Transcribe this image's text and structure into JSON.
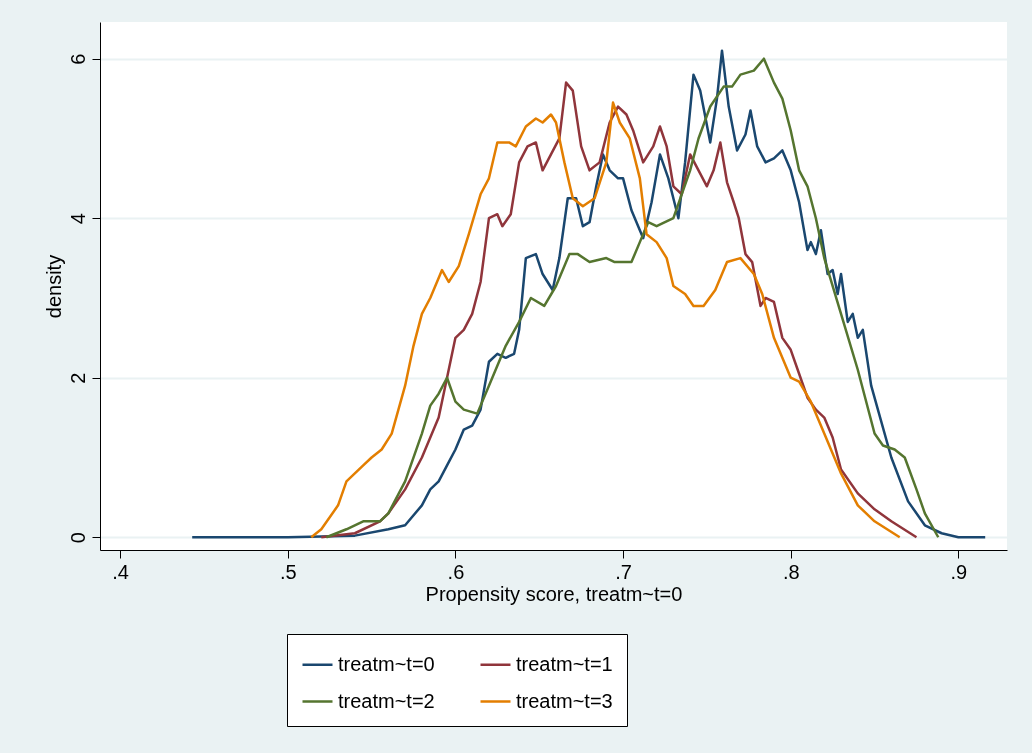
{
  "chart_data": {
    "type": "line",
    "xlabel": "Propensity score, treatm~t=0",
    "ylabel": "density",
    "xlim": [
      0.388,
      0.929
    ],
    "ylim": [
      -0.16,
      6.46
    ],
    "xticks": [
      {
        "value": 0.4,
        "label": ".4"
      },
      {
        "value": 0.5,
        "label": ".5"
      },
      {
        "value": 0.6,
        "label": ".6"
      },
      {
        "value": 0.7,
        "label": ".7"
      },
      {
        "value": 0.8,
        "label": ".8"
      },
      {
        "value": 0.9,
        "label": ".9"
      }
    ],
    "yticks": [
      0,
      2,
      4,
      6
    ],
    "grid": "y",
    "legend": "bottom",
    "line_style": "solid",
    "marker": "none",
    "series": [
      {
        "name": "treatm~t=0",
        "color": "#1a476f",
        "x": [
          0.443,
          0.5,
          0.54,
          0.56,
          0.57,
          0.58,
          0.585,
          0.59,
          0.595,
          0.6,
          0.605,
          0.61,
          0.615,
          0.62,
          0.625,
          0.63,
          0.635,
          0.638,
          0.642,
          0.648,
          0.652,
          0.658,
          0.662,
          0.667,
          0.672,
          0.676,
          0.68,
          0.684,
          0.688,
          0.692,
          0.697,
          0.7,
          0.705,
          0.712,
          0.717,
          0.722,
          0.727,
          0.733,
          0.737,
          0.742,
          0.746,
          0.752,
          0.756,
          0.759,
          0.763,
          0.768,
          0.773,
          0.776,
          0.78,
          0.785,
          0.79,
          0.795,
          0.8,
          0.805,
          0.81,
          0.812,
          0.815,
          0.818,
          0.822,
          0.825,
          0.828,
          0.83,
          0.834,
          0.837,
          0.84,
          0.843,
          0.848,
          0.852,
          0.86,
          0.87,
          0.88,
          0.89,
          0.9,
          0.916
        ],
        "values": [
          0,
          0,
          0.02,
          0.1,
          0.15,
          0.4,
          0.6,
          0.7,
          0.9,
          1.1,
          1.35,
          1.4,
          1.6,
          2.2,
          2.3,
          2.25,
          2.3,
          2.6,
          3.5,
          3.55,
          3.3,
          3.1,
          3.5,
          4.25,
          4.25,
          3.9,
          3.95,
          4.4,
          4.8,
          4.6,
          4.5,
          4.5,
          4.1,
          3.75,
          4.2,
          4.8,
          4.5,
          4.0,
          4.7,
          5.8,
          5.6,
          4.95,
          5.5,
          6.1,
          5.4,
          4.85,
          5.05,
          5.35,
          4.9,
          4.7,
          4.75,
          4.85,
          4.6,
          4.2,
          3.6,
          3.7,
          3.55,
          3.85,
          3.3,
          3.35,
          3.05,
          3.3,
          2.7,
          2.8,
          2.5,
          2.6,
          1.9,
          1.6,
          1.0,
          0.45,
          0.15,
          0.05,
          0,
          0
        ]
      },
      {
        "name": "treatm~t=1",
        "color": "#90353b",
        "x": [
          0.52,
          0.54,
          0.555,
          0.56,
          0.57,
          0.58,
          0.59,
          0.595,
          0.6,
          0.605,
          0.61,
          0.615,
          0.62,
          0.625,
          0.628,
          0.633,
          0.638,
          0.643,
          0.648,
          0.652,
          0.657,
          0.662,
          0.666,
          0.67,
          0.675,
          0.68,
          0.686,
          0.692,
          0.697,
          0.702,
          0.706,
          0.712,
          0.718,
          0.722,
          0.726,
          0.73,
          0.735,
          0.74,
          0.745,
          0.75,
          0.754,
          0.758,
          0.762,
          0.766,
          0.769,
          0.773,
          0.777,
          0.782,
          0.785,
          0.79,
          0.795,
          0.8,
          0.805,
          0.81,
          0.815,
          0.82,
          0.825,
          0.83,
          0.84,
          0.85,
          0.86,
          0.875
        ],
        "values": [
          0,
          0.05,
          0.2,
          0.3,
          0.6,
          1.0,
          1.5,
          2.0,
          2.5,
          2.6,
          2.8,
          3.2,
          4.0,
          4.05,
          3.9,
          4.05,
          4.7,
          4.9,
          4.95,
          4.6,
          4.8,
          5.0,
          5.7,
          5.6,
          4.9,
          4.6,
          4.7,
          5.2,
          5.4,
          5.3,
          5.1,
          4.7,
          4.9,
          5.15,
          4.9,
          4.4,
          4.3,
          4.8,
          4.6,
          4.4,
          4.6,
          4.95,
          4.45,
          4.2,
          4.0,
          3.55,
          3.45,
          2.9,
          3.0,
          2.95,
          2.5,
          2.35,
          2.05,
          1.75,
          1.6,
          1.5,
          1.25,
          0.85,
          0.55,
          0.35,
          0.2,
          0
        ]
      },
      {
        "name": "treatm~t=2",
        "color": "#55752f",
        "x": [
          0.523,
          0.535,
          0.545,
          0.555,
          0.56,
          0.57,
          0.58,
          0.585,
          0.59,
          0.595,
          0.6,
          0.605,
          0.613,
          0.62,
          0.63,
          0.638,
          0.645,
          0.653,
          0.66,
          0.668,
          0.673,
          0.68,
          0.69,
          0.695,
          0.705,
          0.71,
          0.715,
          0.72,
          0.73,
          0.74,
          0.745,
          0.752,
          0.76,
          0.765,
          0.77,
          0.778,
          0.784,
          0.79,
          0.795,
          0.8,
          0.805,
          0.81,
          0.815,
          0.82,
          0.83,
          0.84,
          0.85,
          0.855,
          0.862,
          0.868,
          0.875,
          0.88,
          0.888
        ],
        "values": [
          0,
          0.1,
          0.2,
          0.2,
          0.3,
          0.7,
          1.3,
          1.65,
          1.8,
          2.0,
          1.7,
          1.6,
          1.55,
          1.9,
          2.4,
          2.7,
          3.0,
          2.9,
          3.15,
          3.55,
          3.55,
          3.45,
          3.5,
          3.45,
          3.45,
          3.7,
          3.95,
          3.9,
          4.0,
          4.6,
          5.0,
          5.4,
          5.65,
          5.65,
          5.8,
          5.85,
          6.0,
          5.7,
          5.5,
          5.1,
          4.6,
          4.4,
          4.0,
          3.5,
          2.8,
          2.1,
          1.3,
          1.15,
          1.1,
          1.0,
          0.6,
          0.3,
          0
        ]
      },
      {
        "name": "treatm~t=3",
        "color": "#e37e00",
        "x": [
          0.514,
          0.52,
          0.53,
          0.535,
          0.545,
          0.55,
          0.556,
          0.562,
          0.57,
          0.575,
          0.58,
          0.585,
          0.592,
          0.596,
          0.602,
          0.608,
          0.615,
          0.62,
          0.625,
          0.632,
          0.636,
          0.642,
          0.648,
          0.652,
          0.657,
          0.66,
          0.665,
          0.67,
          0.676,
          0.683,
          0.69,
          0.694,
          0.698,
          0.704,
          0.71,
          0.714,
          0.72,
          0.726,
          0.73,
          0.737,
          0.742,
          0.748,
          0.755,
          0.762,
          0.77,
          0.778,
          0.783,
          0.79,
          0.8,
          0.805,
          0.812,
          0.82,
          0.83,
          0.84,
          0.85,
          0.865
        ],
        "values": [
          0,
          0.1,
          0.4,
          0.7,
          0.9,
          1.0,
          1.1,
          1.3,
          1.9,
          2.4,
          2.8,
          3.0,
          3.35,
          3.2,
          3.4,
          3.8,
          4.3,
          4.5,
          4.95,
          4.95,
          4.9,
          5.15,
          5.25,
          5.2,
          5.3,
          5.2,
          4.7,
          4.25,
          4.15,
          4.25,
          4.7,
          5.45,
          5.2,
          5.0,
          4.5,
          3.8,
          3.7,
          3.5,
          3.15,
          3.05,
          2.9,
          2.9,
          3.1,
          3.45,
          3.5,
          3.3,
          3.05,
          2.5,
          2.0,
          1.95,
          1.7,
          1.3,
          0.8,
          0.4,
          0.2,
          0
        ]
      }
    ]
  }
}
